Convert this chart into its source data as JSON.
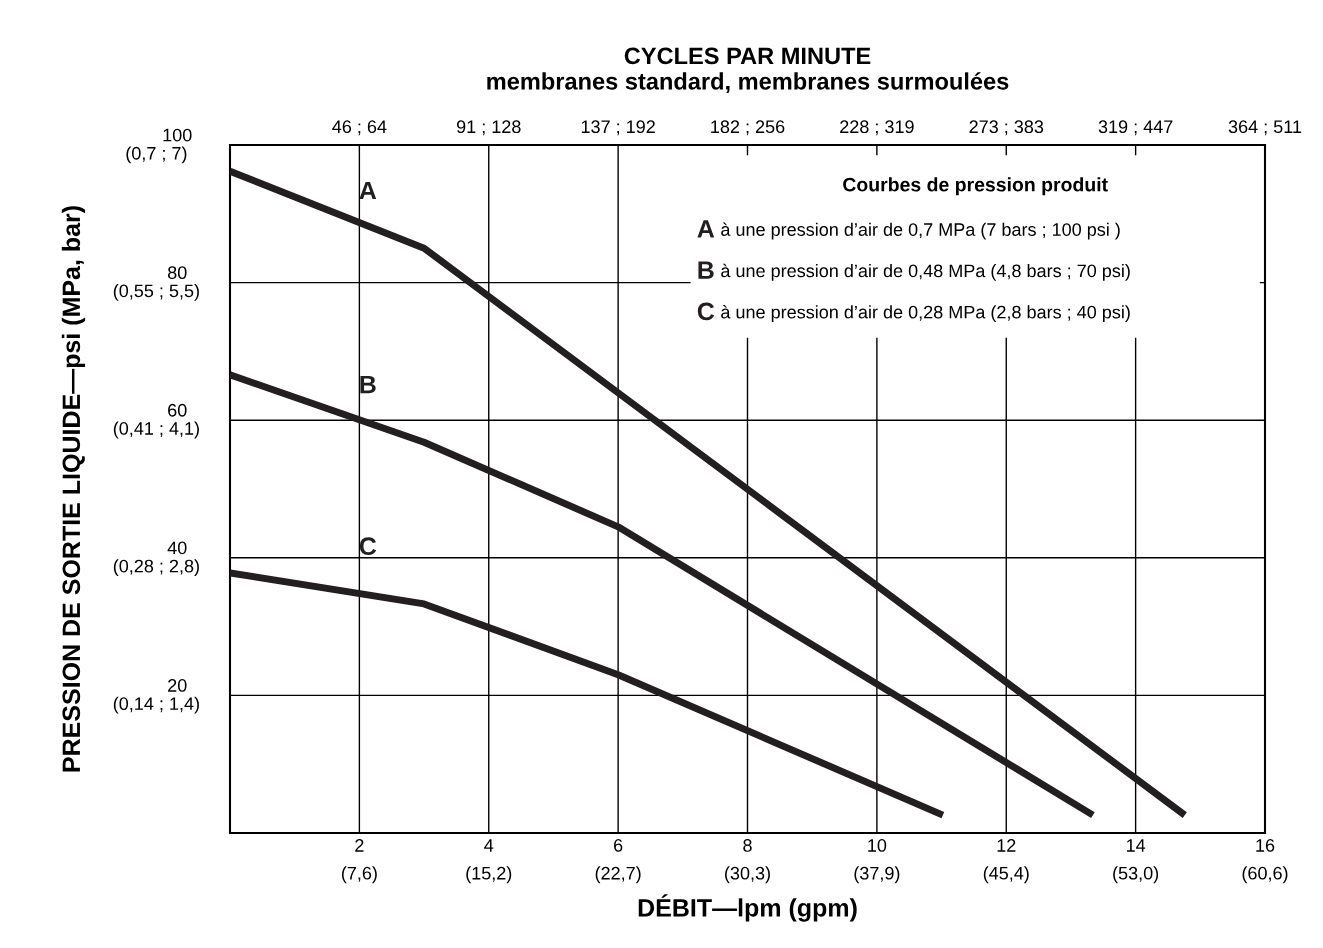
{
  "chart_data": {
    "type": "line",
    "title": "CYCLES PAR MINUTE\nmembranes standard, membranes surmoulées",
    "xlabel": "DÉBIT—lpm (gpm)",
    "ylabel": "PRESSION DE SORTIE LIQUIDE—psi (MPa, bar)",
    "grid": true,
    "line_style": "solid",
    "marker": "none",
    "xlim": [
      0,
      16
    ],
    "xticks": [
      2,
      4,
      6,
      8,
      10,
      12,
      14,
      16
    ],
    "ylim": [
      0,
      100
    ],
    "yticks": [
      20,
      40,
      60,
      80,
      100
    ],
    "series": [
      {
        "name": "A",
        "color": "#231f20",
        "x": [
          0,
          3,
          14.76
        ],
        "values": [
          96.2,
          85,
          2.6
        ]
      },
      {
        "name": "B",
        "color": "#231f20",
        "x": [
          0,
          3,
          6,
          13.34
        ],
        "values": [
          66.6,
          56.8,
          44.5,
          2.6
        ]
      },
      {
        "name": "C",
        "color": "#231f20",
        "x": [
          0,
          3,
          6,
          11.02
        ],
        "values": [
          37.8,
          33.3,
          23,
          2.6
        ]
      }
    ],
    "annotations": [
      "Courbes de pression produit",
      "à une pression d’air de 0,7 MPa (7 bars ; 100 psi )",
      "à une pression d’air de 0,48 MPa (4,8 bars ; 70 psi)",
      "à une pression d’air de 0,28 MPa (2,8 bars ; 40 psi)",
      "(7,6)",
      "(15,2)",
      "(22,7)",
      "(30,3)",
      "(37,9)",
      "(45,4)",
      "(53,0)",
      "(60,6)",
      "(0,14 ; 1,4)",
      "(0,28 ; 2,8)",
      "(0,41 ; 4,1)",
      "(0,55 ; 5,5)",
      "(0,7 ; 7)",
      "46 ; 64",
      "91 ; 128",
      "137 ; 192",
      "182 ; 256",
      "228 ; 319",
      "273 ; 383",
      "319 ; 447",
      "364 ; 511"
    ]
  }
}
